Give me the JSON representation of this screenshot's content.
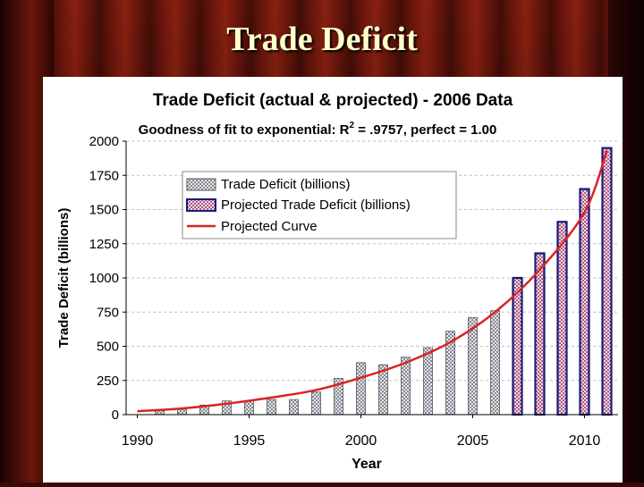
{
  "slide_title": "Trade Deficit",
  "colors": {
    "actual_bar": "#b8b8c8",
    "projected_bar": "#1a1a7a",
    "curve": "#dd2222"
  },
  "chart_data": {
    "type": "bar",
    "title": "Trade Deficit (actual & projected) - 2006 Data",
    "subtitle_prefix": "Goodness of fit to exponential: R",
    "subtitle_sup": "2",
    "subtitle_suffix": " = .9757, perfect = 1.00",
    "xlabel": "Year",
    "ylabel": "Trade Deficit (billions)",
    "ylim": [
      0,
      2000
    ],
    "xlim": [
      1990,
      2011
    ],
    "yticks": [
      "0",
      "250",
      "500",
      "750",
      "1000",
      "1250",
      "1500",
      "1750",
      "2000"
    ],
    "xticks": [
      "1990",
      "1995",
      "2000",
      "2005",
      "2010"
    ],
    "grid": true,
    "legend": {
      "placement": "top-left",
      "items": [
        "Trade Deficit (billions)",
        "Projected Trade Deficit (billions)",
        "Projected Curve"
      ]
    },
    "series": [
      {
        "name": "Trade Deficit (billions)",
        "x": [
          1991,
          1992,
          1993,
          1994,
          1995,
          1996,
          1997,
          1998,
          1999,
          2000,
          2001,
          2002,
          2003,
          2004,
          2005,
          2006
        ],
        "values": [
          30,
          40,
          70,
          100,
          100,
          110,
          110,
          165,
          265,
          380,
          365,
          420,
          490,
          610,
          710,
          760
        ]
      },
      {
        "name": "Projected Trade Deficit (billions)",
        "x": [
          2007,
          2008,
          2009,
          2010,
          2011
        ],
        "values": [
          1000,
          1180,
          1410,
          1650,
          1950
        ]
      },
      {
        "name": "Projected Curve",
        "x": [
          1990,
          1992,
          1994,
          1996,
          1998,
          2000,
          2002,
          2004,
          2006,
          2008,
          2010,
          2011
        ],
        "values": [
          25,
          45,
          80,
          125,
          180,
          270,
          380,
          530,
          750,
          1060,
          1480,
          1930
        ]
      }
    ]
  }
}
